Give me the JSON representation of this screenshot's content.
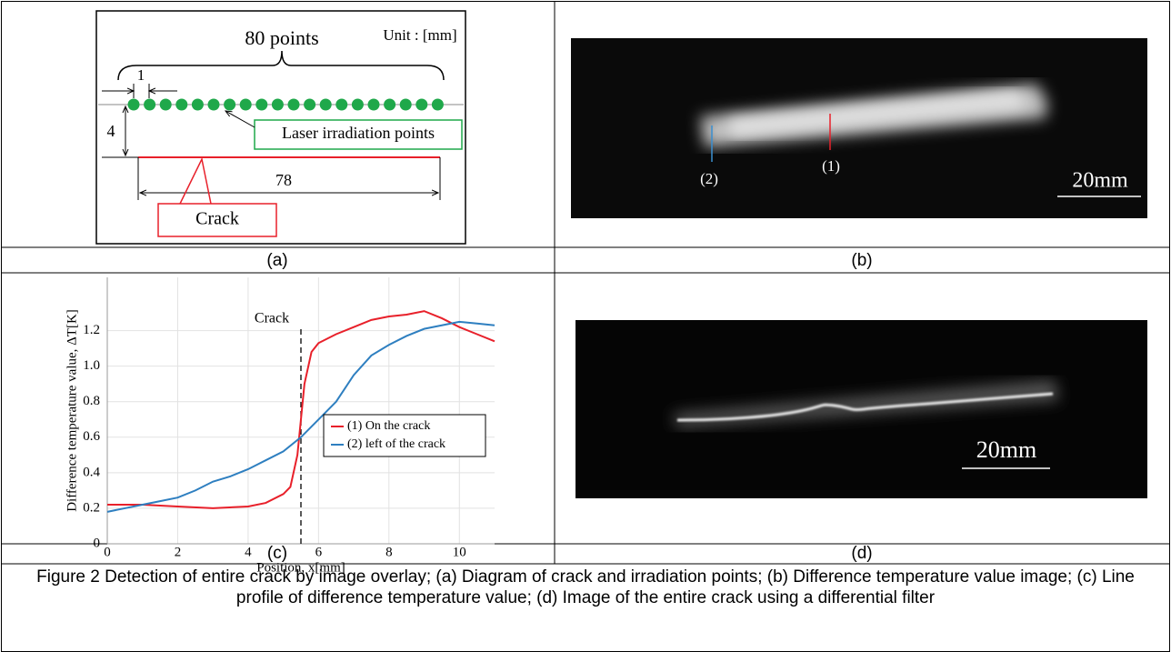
{
  "panels": {
    "a": {
      "label": "(a)",
      "diagram": {
        "count_label": "80 points",
        "unit": "Unit : [mm]",
        "pitch": "1",
        "offset": "4",
        "length": "78",
        "points_label": "Laser irradiation points",
        "crack_label": "Crack"
      }
    },
    "b": {
      "label": "(b)",
      "marker_1": "(1)",
      "marker_2": "(2)",
      "scale": "20mm"
    },
    "c": {
      "label": "(c)"
    },
    "d": {
      "label": "(d)",
      "scale": "20mm"
    }
  },
  "chart_data": {
    "type": "line",
    "y_label": "Difference temperature value, ΔT[K]",
    "x_label": "Position, x[mm]",
    "xlim": [
      0,
      11
    ],
    "xticks": [
      0,
      2,
      4,
      6,
      8,
      10
    ],
    "ylim": [
      0,
      1.5
    ],
    "yticks": [
      0,
      0.2,
      0.4,
      0.6,
      0.8,
      {
        "value": 1,
        "label": "1.0"
      },
      1.2
    ],
    "grid": true,
    "annotation": {
      "text": "Crack",
      "x": 5.5
    },
    "series": [
      {
        "name": "(1) On the crack",
        "color": "#e8202a",
        "x": [
          0,
          1,
          2,
          3,
          4,
          4.5,
          5,
          5.2,
          5.4,
          5.6,
          5.8,
          6,
          6.5,
          7,
          7.5,
          8,
          8.5,
          9,
          9.5,
          10,
          10.5,
          11
        ],
        "values": [
          0.22,
          0.22,
          0.21,
          0.2,
          0.21,
          0.23,
          0.28,
          0.32,
          0.5,
          0.9,
          1.08,
          1.13,
          1.18,
          1.22,
          1.26,
          1.28,
          1.29,
          1.31,
          1.27,
          1.22,
          1.18,
          1.14
        ]
      },
      {
        "name": "(2) left of the crack",
        "color": "#2e7fc0",
        "x": [
          0,
          0.5,
          1,
          1.5,
          2,
          2.5,
          3,
          3.5,
          4,
          4.5,
          5,
          5.5,
          6,
          6.5,
          7,
          7.5,
          8,
          8.5,
          9,
          9.5,
          10,
          10.5,
          11
        ],
        "values": [
          0.18,
          0.2,
          0.22,
          0.24,
          0.26,
          0.3,
          0.35,
          0.38,
          0.42,
          0.47,
          0.52,
          0.6,
          0.7,
          0.8,
          0.95,
          1.06,
          1.12,
          1.17,
          1.21,
          1.23,
          1.25,
          1.24,
          1.23
        ]
      }
    ]
  },
  "caption": "Figure 2 Detection of entire crack by image overlay; (a) Diagram of crack and irradiation points; (b) Difference temperature value image; (c) Line profile of difference temperature value; (d) Image of the entire crack using a differential filter"
}
